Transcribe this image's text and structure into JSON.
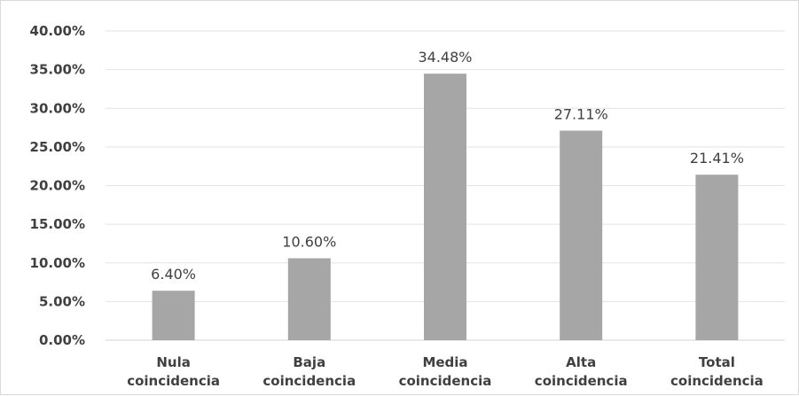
{
  "chart_data": {
    "type": "bar",
    "categories": [
      [
        "Nula",
        "coincidencia"
      ],
      [
        "Baja",
        "coincidencia"
      ],
      [
        "Media",
        "coincidencia"
      ],
      [
        "Alta",
        "coincidencia"
      ],
      [
        "Total",
        "coincidencia"
      ]
    ],
    "values": [
      6.4,
      10.6,
      34.48,
      27.11,
      21.41
    ],
    "data_labels": [
      "6.40%",
      "10.60%",
      "34.48%",
      "27.11%",
      "21.41%"
    ],
    "y_ticks": [
      "0.00%",
      "5.00%",
      "10.00%",
      "15.00%",
      "20.00%",
      "25.00%",
      "30.00%",
      "35.00%",
      "40.00%"
    ],
    "ylim": [
      0,
      40
    ],
    "title": "",
    "xlabel": "",
    "ylabel": "",
    "grid": true,
    "legend": "none",
    "colors": {
      "bar": "#a6a6a6",
      "grid": "#e3e3e3",
      "text": "#404040"
    }
  }
}
